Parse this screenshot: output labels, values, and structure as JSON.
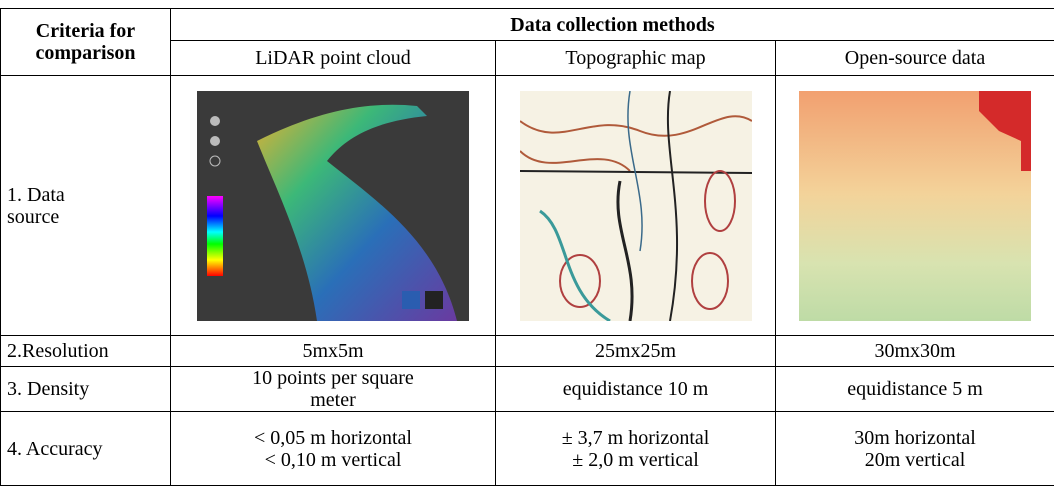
{
  "table": {
    "header": {
      "criteria": [
        "Criteria for",
        "comparison"
      ],
      "methods": "Data collection methods",
      "columns": [
        "LiDAR point cloud",
        "Topographic map",
        "Open-source data"
      ]
    },
    "rows": [
      {
        "label": [
          "1. Data",
          "source"
        ]
      },
      {
        "label": [
          "2.Resolution"
        ],
        "cells": [
          [
            "5mx5m"
          ],
          [
            "25mx25m"
          ],
          [
            "30mx30m"
          ]
        ]
      },
      {
        "label": [
          "3. Density"
        ],
        "cells": [
          [
            "10 points per square",
            "meter"
          ],
          [
            "equidistance 10 m"
          ],
          [
            "equidistance 5 m"
          ]
        ]
      },
      {
        "label": [
          "4. Accuracy"
        ],
        "cells": [
          [
            "< 0,05 m horizontal",
            "< 0,10 m vertical"
          ],
          [
            "± 3,7 m horizontal",
            "± 2,0 m vertical"
          ],
          [
            "30m horizontal",
            "20m vertical"
          ]
        ]
      }
    ]
  }
}
